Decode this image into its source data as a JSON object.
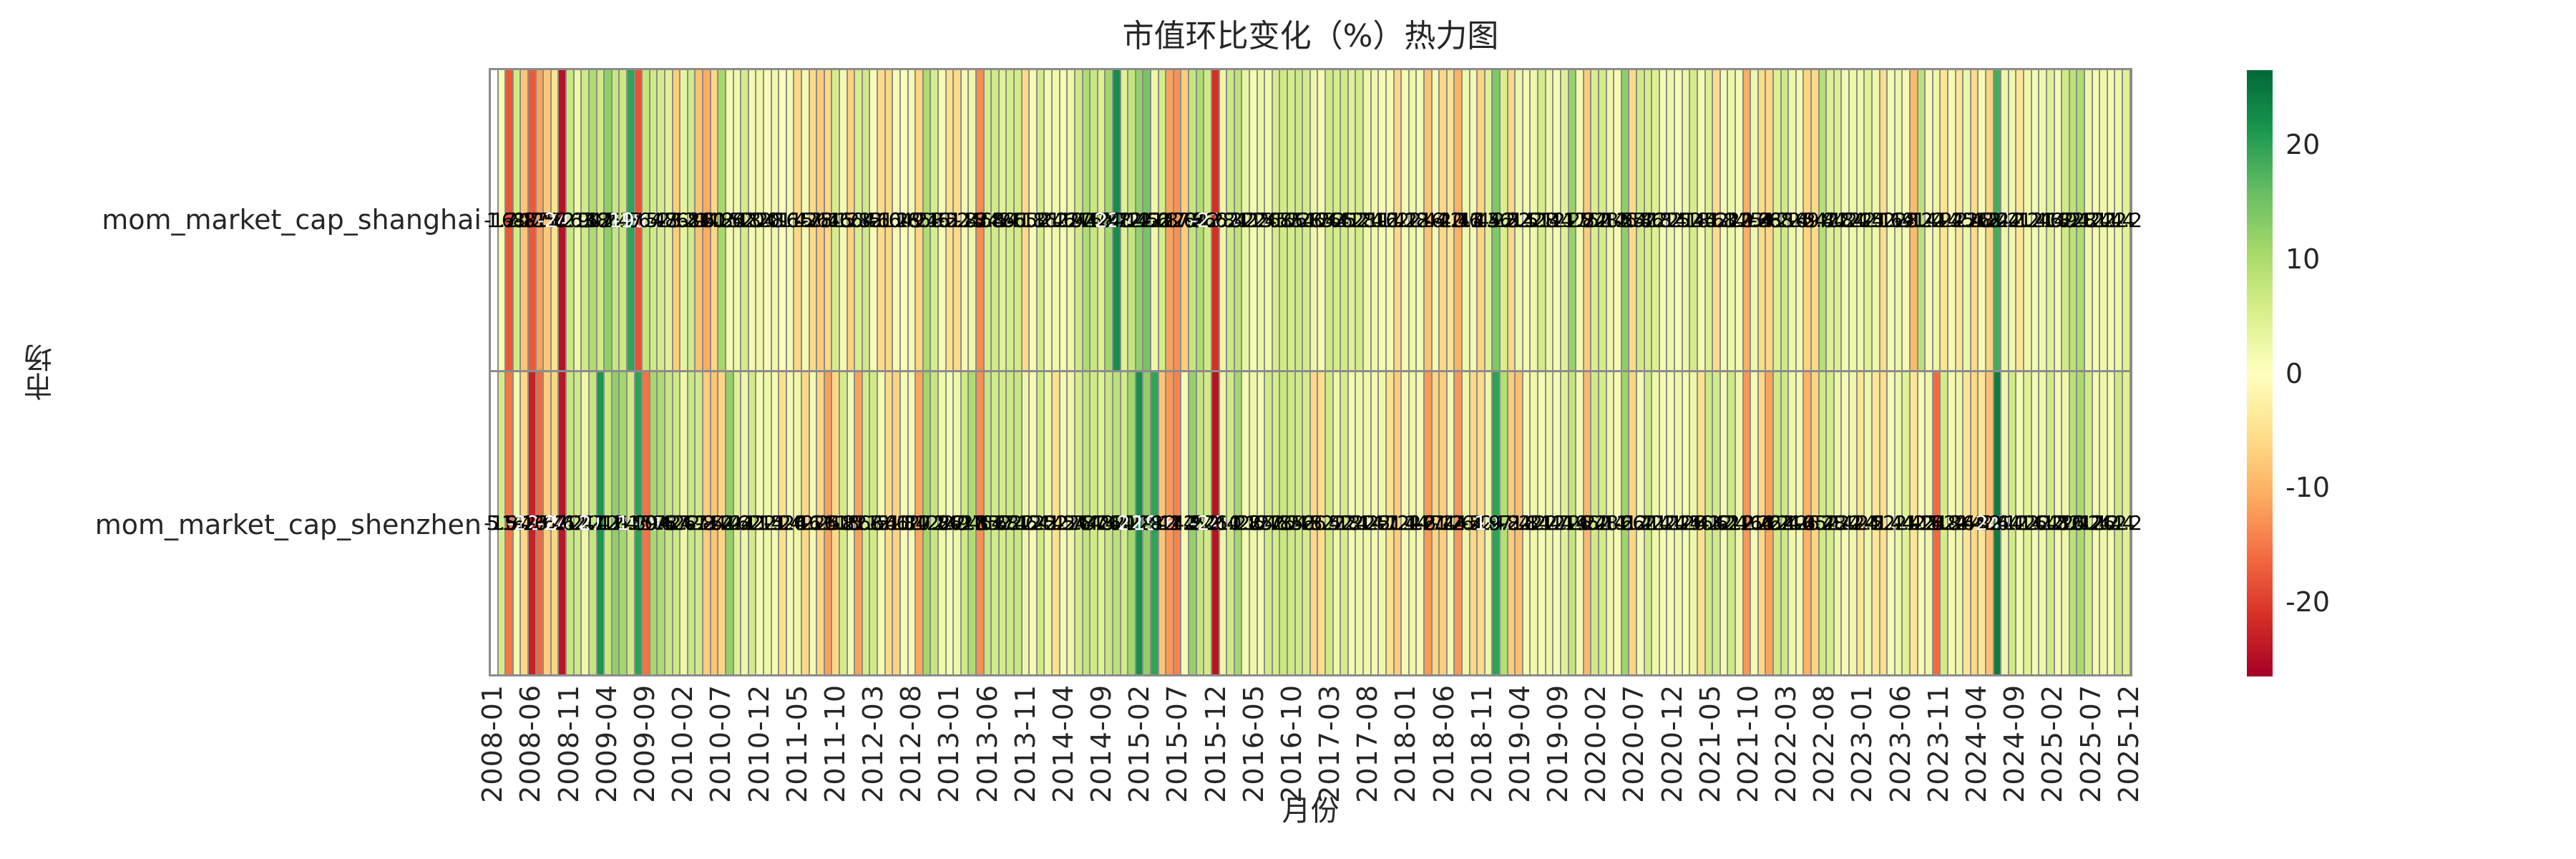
{
  "title": "市值环比变化（%）热力图",
  "x_axis_label": "月份",
  "y_axis_label": "市场",
  "chart_data": {
    "type": "heatmap",
    "colormap": "RdYlGn",
    "vmin": -26.5,
    "vmax": 26.5,
    "annotation_format": "0.1f",
    "grid_color": "#8c8c8c",
    "nan_color": "#ffffff",
    "legend_position": "right-colorbar",
    "colorbar_ticks": [
      20,
      10,
      0,
      -10,
      -20
    ],
    "rows": [
      "mom_market_cap_shanghai",
      "mom_market_cap_shenzhen"
    ],
    "x": [
      "2008-01",
      "2008-02",
      "2008-03",
      "2008-04",
      "2008-05",
      "2008-06",
      "2008-07",
      "2008-08",
      "2008-09",
      "2008-10",
      "2008-11",
      "2008-12",
      "2009-01",
      "2009-02",
      "2009-03",
      "2009-04",
      "2009-05",
      "2009-06",
      "2009-07",
      "2009-08",
      "2009-09",
      "2009-10",
      "2009-11",
      "2009-12",
      "2010-01",
      "2010-02",
      "2010-03",
      "2010-04",
      "2010-05",
      "2010-06",
      "2010-07",
      "2010-08",
      "2010-09",
      "2010-10",
      "2010-11",
      "2010-12",
      "2011-01",
      "2011-02",
      "2011-03",
      "2011-04",
      "2011-05",
      "2011-06",
      "2011-07",
      "2011-08",
      "2011-09",
      "2011-10",
      "2011-11",
      "2011-12",
      "2012-01",
      "2012-02",
      "2012-03",
      "2012-04",
      "2012-05",
      "2012-06",
      "2012-07",
      "2012-08",
      "2012-09",
      "2012-10",
      "2012-11",
      "2012-12",
      "2013-01",
      "2013-02",
      "2013-03",
      "2013-04",
      "2013-05",
      "2013-06",
      "2013-07",
      "2013-08",
      "2013-09",
      "2013-10",
      "2013-11",
      "2013-12",
      "2014-01",
      "2014-02",
      "2014-03",
      "2014-04",
      "2014-05",
      "2014-06",
      "2014-07",
      "2014-08",
      "2014-09",
      "2014-10",
      "2014-11",
      "2014-12",
      "2015-01",
      "2015-02",
      "2015-03",
      "2015-04",
      "2015-05",
      "2015-06",
      "2015-07",
      "2015-08",
      "2015-09",
      "2015-10",
      "2015-11",
      "2015-12",
      "2016-01",
      "2016-02",
      "2016-03",
      "2016-04",
      "2016-05",
      "2016-06",
      "2016-07",
      "2016-08",
      "2016-09",
      "2016-10",
      "2016-11",
      "2016-12",
      "2017-01",
      "2017-02",
      "2017-03",
      "2017-04",
      "2017-05",
      "2017-06",
      "2017-07",
      "2017-08",
      "2017-09",
      "2017-10",
      "2017-11",
      "2017-12",
      "2018-01",
      "2018-02",
      "2018-03",
      "2018-04",
      "2018-05",
      "2018-06",
      "2018-07",
      "2018-08",
      "2018-09",
      "2018-10",
      "2018-11",
      "2018-12",
      "2019-01",
      "2019-02",
      "2019-03",
      "2019-04",
      "2019-05",
      "2019-06",
      "2019-07",
      "2019-08",
      "2019-09",
      "2019-10",
      "2019-11",
      "2019-12",
      "2020-01",
      "2020-02",
      "2020-03",
      "2020-04",
      "2020-05",
      "2020-06",
      "2020-07",
      "2020-08",
      "2020-09",
      "2020-10",
      "2020-11",
      "2020-12",
      "2021-01",
      "2021-02",
      "2021-03",
      "2021-04",
      "2021-05",
      "2021-06",
      "2021-07",
      "2021-08",
      "2021-09",
      "2021-10",
      "2021-11",
      "2021-12",
      "2022-01",
      "2022-02",
      "2022-03",
      "2022-04",
      "2022-05",
      "2022-06",
      "2022-07",
      "2022-08",
      "2022-09",
      "2022-10",
      "2022-11",
      "2022-12",
      "2023-01",
      "2023-02",
      "2023-03",
      "2023-04",
      "2023-05",
      "2023-06",
      "2023-07",
      "2023-08",
      "2023-09",
      "2023-10",
      "2023-11",
      "2023-12",
      "2024-01",
      "2024-02",
      "2024-03",
      "2024-04",
      "2024-05",
      "2024-06",
      "2024-07",
      "2024-08",
      "2024-09",
      "2024-10",
      "2024-11",
      "2024-12",
      "2025-01",
      "2025-02",
      "2025-03",
      "2025-04",
      "2025-05",
      "2025-06",
      "2025-07",
      "2025-08",
      "2025-09",
      "2025-10",
      "2025-11",
      "2025-12"
    ],
    "xtick_labels": [
      "2008-01",
      "2008-06",
      "2008-11",
      "2009-04",
      "2009-09",
      "2010-02",
      "2010-07",
      "2010-12",
      "2011-05",
      "2011-10",
      "2012-03",
      "2012-08",
      "2013-01",
      "2013-06",
      "2013-11",
      "2014-04",
      "2014-09",
      "2015-02",
      "2015-07",
      "2015-12",
      "2016-05",
      "2016-10",
      "2017-03",
      "2017-08",
      "2018-01",
      "2018-06",
      "2018-11",
      "2019-04",
      "2019-09",
      "2020-02",
      "2020-07",
      "2020-12",
      "2021-05",
      "2021-10",
      "2022-03",
      "2022-08",
      "2023-01",
      "2023-06",
      "2023-11",
      "2024-04",
      "2024-09",
      "2025-02",
      "2025-07",
      "2025-12"
    ],
    "xtick_step": 5,
    "series": [
      {
        "name": "mom_market_cap_shanghai",
        "values": [
          null,
          1.2,
          -17.8,
          6.1,
          -8.2,
          -17.5,
          -11.6,
          -7.8,
          -5.2,
          -24.6,
          7.1,
          2.3,
          6.4,
          9.8,
          6.2,
          12.4,
          7.3,
          6.8,
          19.6,
          -18.2,
          7.4,
          6.2,
          5.8,
          4.1,
          -7.2,
          3.2,
          6.1,
          -8.4,
          -10.8,
          -6.2,
          10.6,
          1.4,
          2.2,
          5.8,
          1.2,
          2.4,
          0.8,
          2.1,
          0.6,
          1.4,
          -6.2,
          1.2,
          -5.8,
          -7.4,
          -6.1,
          5.6,
          1.2,
          -6.8,
          5.4,
          6.2,
          1.1,
          -5.6,
          -6.2,
          1.4,
          0.8,
          1.2,
          -6.4,
          9.8,
          5.6,
          1.2,
          -5.2,
          -5.8,
          1.4,
          2.2,
          -13.4,
          5.8,
          6.2,
          4.4,
          5.6,
          6.1,
          -5.8,
          1.2,
          5.6,
          1.4,
          2.1,
          1.2,
          2.4,
          6.2,
          9.6,
          7.2,
          4.8,
          10.8,
          22.4,
          4.2,
          7.4,
          12.2,
          14.6,
          2.2,
          5.8,
          -11.6,
          -12.8,
          -7.2,
          7.4,
          9.6,
          6.2,
          -21.4,
          2.2,
          6.4,
          8.2,
          3.1,
          1.2,
          2.4,
          2.1,
          5.8,
          6.2,
          5.6,
          6.4,
          5.8,
          2.2,
          1.4,
          6.2,
          5.6,
          6.1,
          4.2,
          5.8,
          2.4,
          2.1,
          1.2,
          1.4,
          -6.2,
          1.2,
          2.2,
          1.4,
          -8.4,
          1.2,
          -6.2,
          -4.4,
          -10.2,
          2.1,
          1.4,
          -6.4,
          4.2,
          13.8,
          5.2,
          -6.2,
          2.4,
          1.2,
          2.1,
          5.8,
          2.2,
          1.4,
          4.2,
          11.8,
          1.2,
          -7.4,
          5.2,
          5.8,
          2.4,
          1.2,
          12.4,
          -5.8,
          6.2,
          5.6,
          4.8,
          1.2,
          2.4,
          1.1,
          2.2,
          5.8,
          1.4,
          4.6,
          -5.8,
          1.2,
          2.4,
          1.1,
          -10.4,
          2.2,
          -5.8,
          -6.2,
          4.8,
          6.2,
          2.4,
          1.2,
          -6.4,
          -5.8,
          9.2,
          4.4,
          4.8,
          1.2,
          2.4,
          2.2,
          4.4,
          2.1,
          -5.6,
          1.2,
          2.4,
          1.1,
          -9.2,
          8.4,
          1.2,
          2.2,
          -4.4,
          1.2,
          -4.2,
          2.4,
          -5.8,
          1.2,
          -6.4,
          18.2,
          2.4,
          2.1,
          -4.2,
          2.2,
          1.4,
          2.1,
          4.4,
          1.2,
          6.2,
          8.4,
          9.8,
          2.2,
          1.4,
          2.1,
          1.2,
          2.4,
          4.2
        ]
      },
      {
        "name": "mom_market_cap_shenzhen",
        "values": [
          null,
          5.8,
          -15.2,
          1.4,
          -6.2,
          -22.8,
          -16.4,
          -7.2,
          -6.4,
          -24.2,
          7.2,
          6.4,
          2.2,
          7.4,
          21.2,
          7.2,
          12.4,
          10.8,
          6.2,
          19.8,
          -15.4,
          10.6,
          9.8,
          7.2,
          6.4,
          2.2,
          7.1,
          6.2,
          -7.4,
          -8.2,
          -6.4,
          12.2,
          4.4,
          2.2,
          6.1,
          1.2,
          2.4,
          1.2,
          -5.4,
          1.4,
          2.2,
          -6.2,
          1.2,
          -6.4,
          -11.8,
          -6.2,
          5.8,
          1.2,
          -11.6,
          5.8,
          6.2,
          1.4,
          -5.6,
          -6.8,
          1.2,
          1.4,
          -11.2,
          10.8,
          7.2,
          2.4,
          1.2,
          2.2,
          6.4,
          9.8,
          -13.2,
          7.4,
          6.2,
          5.8,
          6.4,
          7.2,
          2.2,
          1.4,
          6.2,
          2.4,
          -5.2,
          1.2,
          2.4,
          5.8,
          7.4,
          6.2,
          4.4,
          7.2,
          8.4,
          6.2,
          10.8,
          22.2,
          12.4,
          19.6,
          -8.2,
          -12.4,
          -14.2,
          1.2,
          12.2,
          7.4,
          6.2,
          -24.4,
          2.4,
          6.2,
          10.8,
          1.2,
          2.2,
          1.4,
          6.2,
          5.8,
          7.2,
          6.4,
          6.2,
          5.8,
          -6.2,
          -5.4,
          6.2,
          2.2,
          5.8,
          1.4,
          2.2,
          2.4,
          1.2,
          2.1,
          -5.2,
          -7.4,
          1.2,
          2.4,
          1.2,
          -12.2,
          -6.4,
          -7.2,
          1.4,
          -12.4,
          2.2,
          -6.2,
          -5.8,
          2.4,
          19.8,
          9.2,
          -7.4,
          -8.8,
          1.2,
          2.4,
          1.2,
          2.2,
          1.4,
          4.2,
          7.4,
          1.2,
          -9.4,
          6.2,
          5.8,
          2.4,
          1.2,
          11.2,
          -6.4,
          1.2,
          6.2,
          2.4,
          1.2,
          1.4,
          2.2,
          1.4,
          2.4,
          -5.2,
          6.4,
          6.2,
          1.2,
          6.4,
          2.2,
          -12.4,
          1.2,
          -6.2,
          -11.4,
          6.2,
          6.4,
          2.2,
          1.2,
          -10.2,
          -6.4,
          6.2,
          5.8,
          2.4,
          1.2,
          2.2,
          -4.4,
          2.2,
          -4.2,
          -5.4,
          1.2,
          2.4,
          4.4,
          -4.2,
          1.2,
          2.4,
          -16.2,
          5.8,
          1.2,
          2.4,
          -4.4,
          -6.2,
          -4.2,
          -8.4,
          24.2,
          2.4,
          6.2,
          1.2,
          4.4,
          1.2,
          2.4,
          6.2,
          1.2,
          2.2,
          8.4,
          10.2,
          6.2,
          1.4,
          2.2,
          1.2,
          6.4,
          4.2
        ]
      }
    ]
  }
}
